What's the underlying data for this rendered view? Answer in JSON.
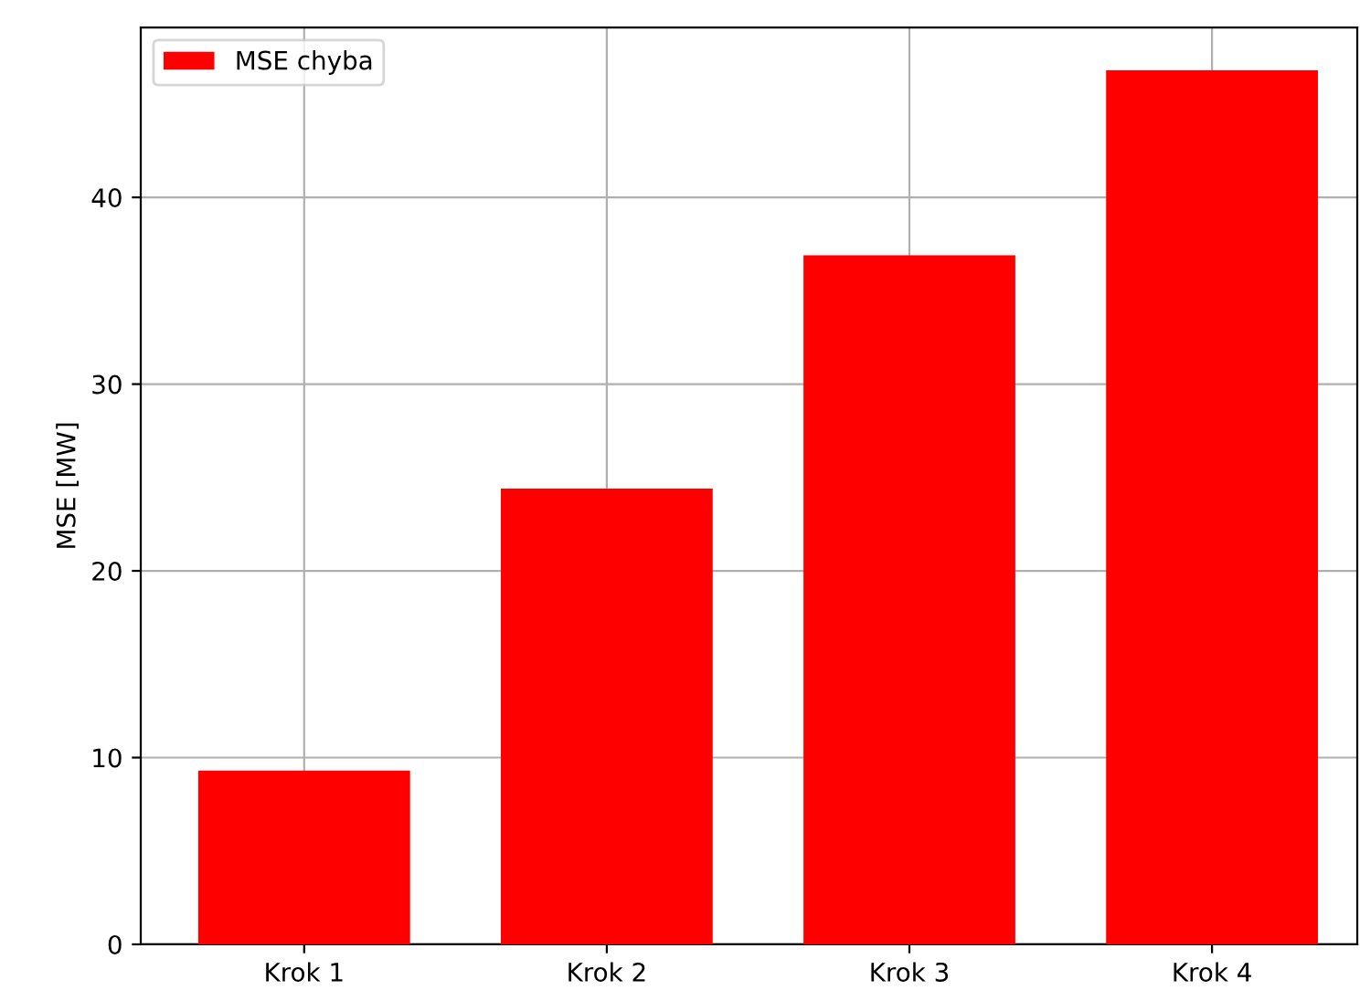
{
  "chart_data": {
    "type": "bar",
    "ylabel": "MSE [MW]",
    "categories": [
      "Krok 1",
      "Krok 2",
      "Krok 3",
      "Krok 4"
    ],
    "series": [
      {
        "name": "MSE chyba",
        "color": "#ff0000",
        "values": [
          9.3,
          24.4,
          36.9,
          46.8
        ]
      }
    ],
    "ylim": [
      0,
      49.1
    ],
    "yticks": [
      0,
      10,
      20,
      30,
      40
    ],
    "grid": true,
    "legend": "top left"
  }
}
